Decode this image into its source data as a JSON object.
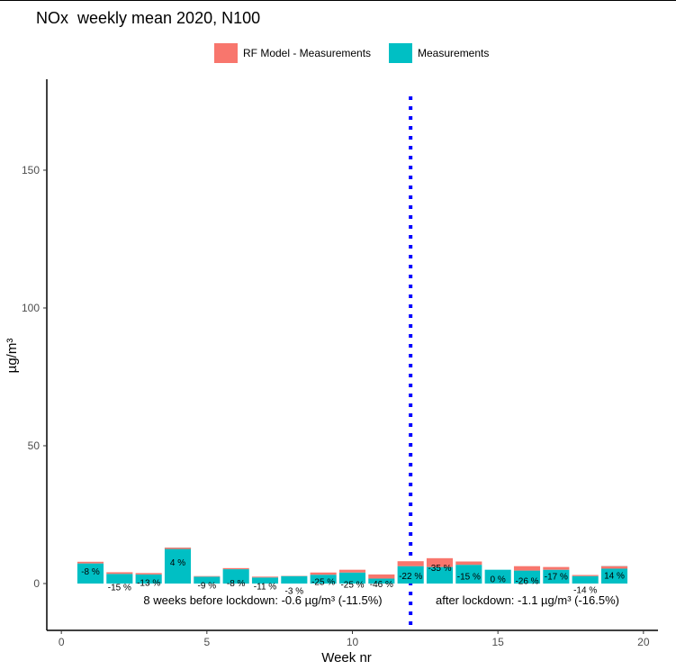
{
  "title": "NOx  weekly mean 2020, N100",
  "legend": {
    "items": [
      {
        "label": "RF Model - Measurements",
        "color": "#f8766d"
      },
      {
        "label": "Measurements",
        "color": "#00bfc4"
      }
    ]
  },
  "chart_data": {
    "type": "bar",
    "xlabel": "Week nr",
    "ylabel": "µg/m³",
    "xlim": [
      -0.5,
      20.5
    ],
    "ylim": [
      -17,
      183
    ],
    "xticks": [
      0,
      5,
      10,
      15,
      20
    ],
    "yticks": [
      0,
      50,
      100,
      150
    ],
    "weeks": [
      1,
      2,
      3,
      4,
      5,
      6,
      7,
      8,
      9,
      10,
      11,
      12,
      13,
      14,
      15,
      16,
      17,
      18,
      19
    ],
    "series": [
      {
        "name": "Measurements",
        "color": "#00bfc4",
        "values": [
          7.3,
          3.5,
          3.3,
          13.0,
          2.5,
          5.2,
          2.2,
          2.7,
          3.2,
          4.0,
          1.8,
          6.3,
          6.0,
          6.8,
          5.0,
          4.7,
          5.0,
          2.7,
          6.3
        ]
      },
      {
        "name": "RF Model - Measurements",
        "color": "#f8766d",
        "values": [
          0.6,
          0.6,
          0.5,
          -0.5,
          0.2,
          0.4,
          0.3,
          0.1,
          0.8,
          1.0,
          1.5,
          1.8,
          3.2,
          1.2,
          0.0,
          1.6,
          1.0,
          0.4,
          -0.9
        ]
      }
    ],
    "labels": [
      "-8 %",
      "-15 %",
      "-13 %",
      "4 %",
      "-9 %",
      "-8 %",
      "-11 %",
      "-3 %",
      "-25 %",
      "-25 %",
      "-46 %",
      "-22 %",
      "-35 %",
      "-15 %",
      "0 %",
      "-26 %",
      "-17 %",
      "-14 %",
      "14 %"
    ],
    "lockdown_week": 12,
    "lockdown_line_color": "#0000ff",
    "annotations": {
      "before": "8 weeks before lockdown: -0.6 µg/m³ (-11.5%)",
      "after": "after lockdown: -1.1 µg/m³ (-16.5%)"
    }
  }
}
